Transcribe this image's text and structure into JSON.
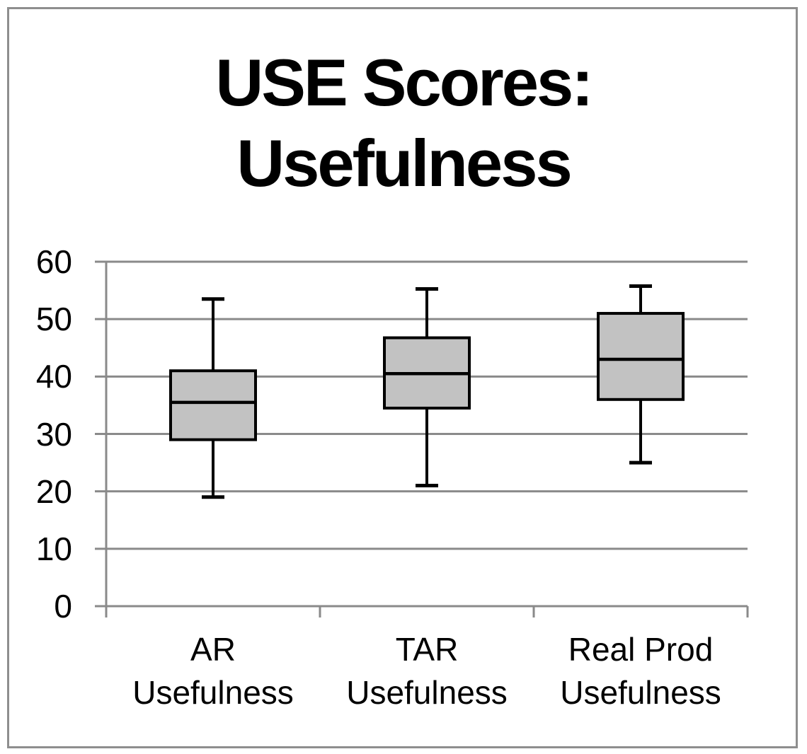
{
  "title": {
    "line1": "USE Scores:",
    "line2": "Usefulness"
  },
  "chart_data": {
    "type": "boxplot",
    "title": "USE Scores: Usefulness",
    "categories": [
      [
        "AR",
        "Usefulness"
      ],
      [
        "TAR",
        "Usefulness"
      ],
      [
        "Real Prod",
        "Usefulness"
      ]
    ],
    "boxes": [
      {
        "category": "AR Usefulness",
        "min": 19,
        "q1": 29,
        "median": 35.5,
        "q3": 41,
        "max": 53.5
      },
      {
        "category": "TAR Usefulness",
        "min": 21,
        "q1": 34.5,
        "median": 40.5,
        "q3": 46.75,
        "max": 55.25
      },
      {
        "category": "Real Prod Usefulness",
        "min": 25,
        "q1": 36,
        "median": 43,
        "q3": 51,
        "max": 55.75
      }
    ],
    "ylim": [
      0,
      60
    ],
    "yticks": [
      0,
      10,
      20,
      30,
      40,
      50,
      60
    ],
    "xlabel": "",
    "ylabel": "",
    "grid": true,
    "legend": "none",
    "colors": {
      "box_fill": "#c2c2c2",
      "box_border": "#000000",
      "gridline": "#8a8a8a",
      "axis": "#8a8a8a",
      "frame": "#8e8e8e",
      "text": "#000000",
      "background": "#ffffff"
    }
  }
}
